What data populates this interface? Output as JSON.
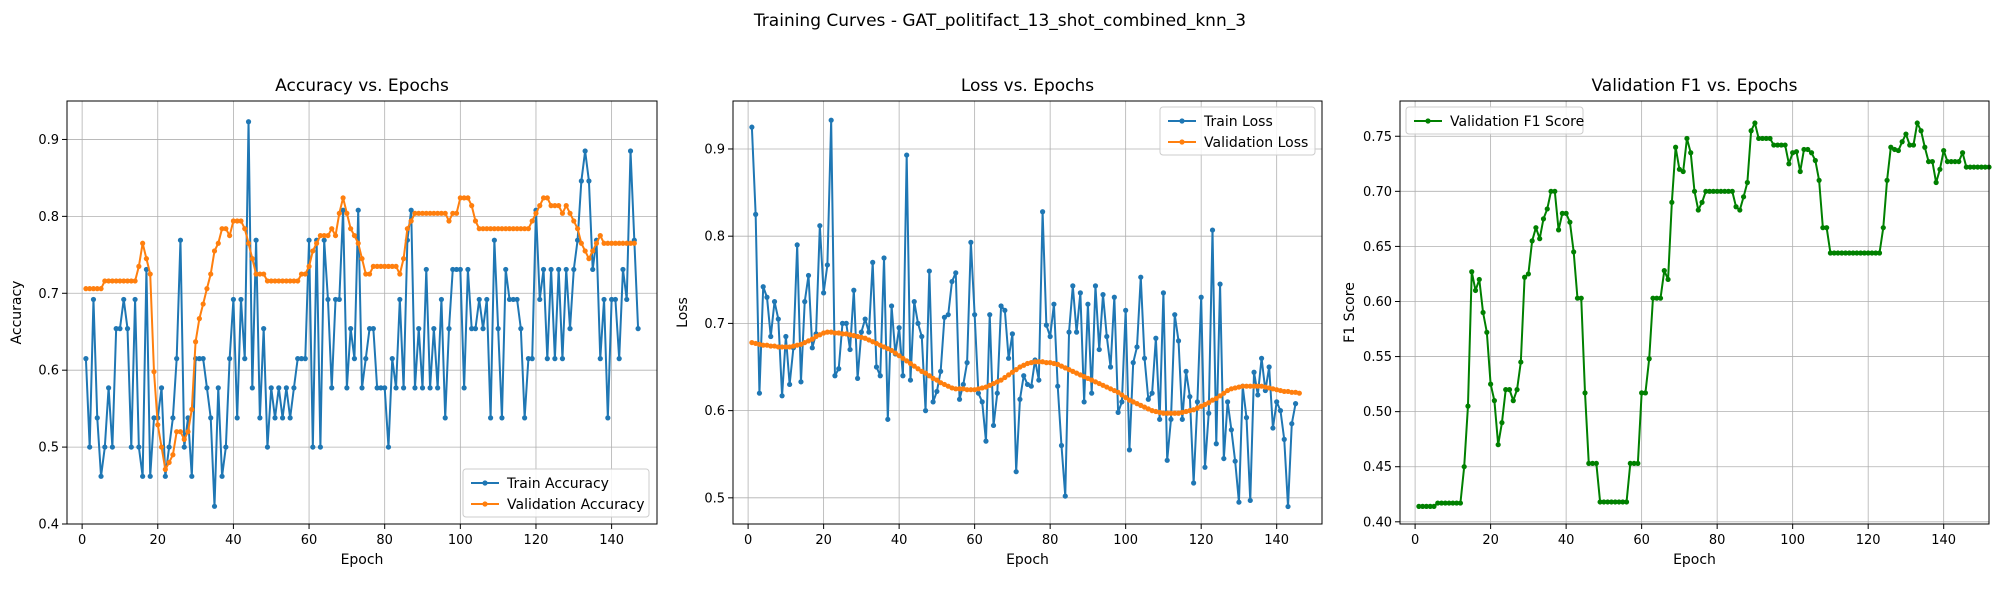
{
  "figure": {
    "suptitle": "Training Curves - GAT_politifact_13_shot_combined_knn_3"
  },
  "colors": {
    "train": "#1f77b4",
    "validation": "#ff7f0e",
    "f1": "#008000",
    "grid": "#b0b0b0"
  },
  "chart_data": [
    {
      "type": "line",
      "title": "Accuracy vs. Epochs",
      "xlabel": "Epoch",
      "ylabel": "Accuracy",
      "xlim": [
        -4,
        152
      ],
      "ylim": [
        0.4,
        0.95
      ],
      "xticks": [
        0,
        20,
        40,
        60,
        80,
        100,
        120,
        140
      ],
      "yticks": [
        0.4,
        0.5,
        0.6,
        0.7,
        0.8,
        0.9
      ],
      "grid": true,
      "legend": "lower-right",
      "markers": true,
      "series": [
        {
          "name": "Train Accuracy",
          "color": "#1f77b4",
          "x_start": 1,
          "values": [
            0.615,
            0.5,
            0.692,
            0.538,
            0.462,
            0.5,
            0.577,
            0.5,
            0.654,
            0.654,
            0.692,
            0.654,
            0.5,
            0.692,
            0.5,
            0.462,
            0.731,
            0.462,
            0.538,
            0.538,
            0.577,
            0.462,
            0.5,
            0.538,
            0.615,
            0.769,
            0.5,
            0.538,
            0.462,
            0.615,
            0.615,
            0.615,
            0.577,
            0.538,
            0.423,
            0.577,
            0.462,
            0.5,
            0.615,
            0.692,
            0.538,
            0.692,
            0.615,
            0.923,
            0.577,
            0.769,
            0.538,
            0.654,
            0.5,
            0.577,
            0.538,
            0.577,
            0.538,
            0.577,
            0.538,
            0.577,
            0.615,
            0.615,
            0.615,
            0.769,
            0.5,
            0.769,
            0.5,
            0.769,
            0.692,
            0.577,
            0.692,
            0.692,
            0.808,
            0.577,
            0.654,
            0.615,
            0.808,
            0.577,
            0.615,
            0.654,
            0.654,
            0.577,
            0.577,
            0.577,
            0.5,
            0.615,
            0.577,
            0.692,
            0.577,
            0.769,
            0.808,
            0.577,
            0.654,
            0.577,
            0.731,
            0.577,
            0.654,
            0.577,
            0.692,
            0.538,
            0.654,
            0.731,
            0.731,
            0.731,
            0.577,
            0.731,
            0.654,
            0.654,
            0.692,
            0.654,
            0.692,
            0.538,
            0.769,
            0.654,
            0.538,
            0.731,
            0.692,
            0.692,
            0.692,
            0.654,
            0.538,
            0.615,
            0.615,
            0.808,
            0.692,
            0.731,
            0.615,
            0.731,
            0.615,
            0.731,
            0.615,
            0.731,
            0.654,
            0.731,
            0.769,
            0.846,
            0.885,
            0.846,
            0.731,
            0.769,
            0.615,
            0.692,
            0.538,
            0.692,
            0.692,
            0.615,
            0.731,
            0.692,
            0.885,
            0.769,
            0.654
          ]
        },
        {
          "name": "Validation Accuracy",
          "color": "#ff7f0e",
          "x_start": 1,
          "values": [
            0.706,
            0.706,
            0.706,
            0.706,
            0.706,
            0.716,
            0.716,
            0.716,
            0.716,
            0.716,
            0.716,
            0.716,
            0.716,
            0.716,
            0.735,
            0.765,
            0.745,
            0.725,
            0.598,
            0.529,
            0.5,
            0.471,
            0.48,
            0.49,
            0.52,
            0.52,
            0.51,
            0.52,
            0.549,
            0.637,
            0.667,
            0.686,
            0.706,
            0.725,
            0.755,
            0.765,
            0.784,
            0.784,
            0.775,
            0.794,
            0.794,
            0.794,
            0.784,
            0.765,
            0.745,
            0.725,
            0.725,
            0.725,
            0.716,
            0.716,
            0.716,
            0.716,
            0.716,
            0.716,
            0.716,
            0.716,
            0.716,
            0.725,
            0.725,
            0.735,
            0.755,
            0.765,
            0.775,
            0.775,
            0.775,
            0.784,
            0.775,
            0.804,
            0.824,
            0.804,
            0.784,
            0.775,
            0.765,
            0.745,
            0.725,
            0.725,
            0.735,
            0.735,
            0.735,
            0.735,
            0.735,
            0.735,
            0.735,
            0.725,
            0.745,
            0.784,
            0.794,
            0.804,
            0.804,
            0.804,
            0.804,
            0.804,
            0.804,
            0.804,
            0.804,
            0.804,
            0.794,
            0.804,
            0.804,
            0.824,
            0.824,
            0.824,
            0.814,
            0.794,
            0.784,
            0.784,
            0.784,
            0.784,
            0.784,
            0.784,
            0.784,
            0.784,
            0.784,
            0.784,
            0.784,
            0.784,
            0.784,
            0.784,
            0.794,
            0.804,
            0.814,
            0.824,
            0.824,
            0.814,
            0.814,
            0.814,
            0.804,
            0.814,
            0.804,
            0.794,
            0.784,
            0.765,
            0.755,
            0.745,
            0.755,
            0.765,
            0.775,
            0.765,
            0.765,
            0.765,
            0.765,
            0.765,
            0.765,
            0.765,
            0.765,
            0.765
          ]
        }
      ]
    },
    {
      "type": "line",
      "title": "Loss vs. Epochs",
      "xlabel": "Epoch",
      "ylabel": "Loss",
      "xlim": [
        -4,
        152
      ],
      "ylim": [
        0.47,
        0.955
      ],
      "xticks": [
        0,
        20,
        40,
        60,
        80,
        100,
        120,
        140
      ],
      "yticks": [
        0.5,
        0.6,
        0.7,
        0.8,
        0.9
      ],
      "grid": true,
      "legend": "top-right",
      "markers": true,
      "series": [
        {
          "name": "Train Loss",
          "color": "#1f77b4",
          "x_start": 1,
          "values": [
            0.925,
            0.825,
            0.62,
            0.742,
            0.73,
            0.685,
            0.725,
            0.705,
            0.617,
            0.685,
            0.63,
            0.672,
            0.79,
            0.633,
            0.725,
            0.755,
            0.672,
            0.688,
            0.812,
            0.735,
            0.767,
            0.933,
            0.64,
            0.648,
            0.7,
            0.7,
            0.67,
            0.738,
            0.637,
            0.69,
            0.705,
            0.69,
            0.77,
            0.65,
            0.64,
            0.775,
            0.59,
            0.72,
            0.665,
            0.695,
            0.64,
            0.893,
            0.635,
            0.725,
            0.7,
            0.685,
            0.6,
            0.76,
            0.61,
            0.622,
            0.645,
            0.707,
            0.71,
            0.748,
            0.758,
            0.613,
            0.63,
            0.655,
            0.793,
            0.71,
            0.62,
            0.61,
            0.565,
            0.71,
            0.583,
            0.62,
            0.72,
            0.715,
            0.66,
            0.688,
            0.53,
            0.613,
            0.64,
            0.63,
            0.628,
            0.658,
            0.635,
            0.828,
            0.698,
            0.685,
            0.722,
            0.628,
            0.56,
            0.502,
            0.69,
            0.743,
            0.69,
            0.735,
            0.61,
            0.722,
            0.62,
            0.743,
            0.67,
            0.733,
            0.685,
            0.65,
            0.73,
            0.598,
            0.61,
            0.715,
            0.555,
            0.655,
            0.673,
            0.753,
            0.66,
            0.613,
            0.62,
            0.683,
            0.59,
            0.735,
            0.543,
            0.59,
            0.71,
            0.68,
            0.59,
            0.645,
            0.616,
            0.517,
            0.61,
            0.73,
            0.535,
            0.597,
            0.807,
            0.562,
            0.745,
            0.545,
            0.61,
            0.578,
            0.542,
            0.495,
            0.628,
            0.592,
            0.497,
            0.644,
            0.618,
            0.66,
            0.623,
            0.65,
            0.58,
            0.61,
            0.6,
            0.567,
            0.49,
            0.585,
            0.608
          ]
        },
        {
          "name": "Validation Loss",
          "color": "#ff7f0e",
          "x_start": 1,
          "values": [
            0.678,
            0.677,
            0.676,
            0.675,
            0.675,
            0.674,
            0.674,
            0.673,
            0.673,
            0.673,
            0.673,
            0.674,
            0.675,
            0.676,
            0.678,
            0.68,
            0.682,
            0.685,
            0.687,
            0.689,
            0.69,
            0.69,
            0.689,
            0.689,
            0.688,
            0.688,
            0.687,
            0.686,
            0.685,
            0.684,
            0.683,
            0.681,
            0.679,
            0.677,
            0.675,
            0.673,
            0.671,
            0.669,
            0.666,
            0.663,
            0.66,
            0.657,
            0.654,
            0.651,
            0.648,
            0.645,
            0.643,
            0.64,
            0.637,
            0.635,
            0.632,
            0.63,
            0.628,
            0.626,
            0.625,
            0.625,
            0.625,
            0.624,
            0.624,
            0.624,
            0.625,
            0.626,
            0.627,
            0.629,
            0.631,
            0.633,
            0.635,
            0.638,
            0.641,
            0.644,
            0.647,
            0.65,
            0.652,
            0.654,
            0.655,
            0.656,
            0.656,
            0.656,
            0.655,
            0.655,
            0.654,
            0.653,
            0.651,
            0.649,
            0.647,
            0.645,
            0.643,
            0.641,
            0.639,
            0.637,
            0.635,
            0.633,
            0.631,
            0.629,
            0.627,
            0.625,
            0.623,
            0.621,
            0.618,
            0.615,
            0.612,
            0.61,
            0.608,
            0.606,
            0.604,
            0.602,
            0.6,
            0.599,
            0.598,
            0.597,
            0.597,
            0.597,
            0.597,
            0.597,
            0.598,
            0.599,
            0.6,
            0.601,
            0.603,
            0.605,
            0.607,
            0.609,
            0.612,
            0.614,
            0.617,
            0.62,
            0.623,
            0.625,
            0.626,
            0.627,
            0.628,
            0.628,
            0.628,
            0.628,
            0.628,
            0.628,
            0.627,
            0.626,
            0.625,
            0.624,
            0.623,
            0.622,
            0.622,
            0.621,
            0.621,
            0.62
          ]
        }
      ]
    },
    {
      "type": "line",
      "title": "Validation F1 vs. Epochs",
      "xlabel": "Epoch",
      "ylabel": "F1 Score",
      "xlim": [
        -4,
        152
      ],
      "ylim": [
        0.398,
        0.782
      ],
      "xticks": [
        0,
        20,
        40,
        60,
        80,
        100,
        120,
        140
      ],
      "yticks": [
        0.4,
        0.45,
        0.5,
        0.55,
        0.6,
        0.65,
        0.7,
        0.75
      ],
      "grid": true,
      "legend": "top-left",
      "markers": true,
      "series": [
        {
          "name": "Validation F1 Score",
          "color": "#008000",
          "x_start": 1,
          "values": [
            0.414,
            0.414,
            0.414,
            0.414,
            0.414,
            0.417,
            0.417,
            0.417,
            0.417,
            0.417,
            0.417,
            0.417,
            0.45,
            0.505,
            0.627,
            0.61,
            0.62,
            0.59,
            0.572,
            0.525,
            0.51,
            0.47,
            0.49,
            0.52,
            0.52,
            0.51,
            0.52,
            0.545,
            0.622,
            0.625,
            0.655,
            0.667,
            0.657,
            0.675,
            0.684,
            0.7,
            0.7,
            0.665,
            0.68,
            0.68,
            0.672,
            0.645,
            0.603,
            0.603,
            0.517,
            0.453,
            0.453,
            0.453,
            0.418,
            0.418,
            0.418,
            0.418,
            0.418,
            0.418,
            0.418,
            0.418,
            0.453,
            0.453,
            0.453,
            0.517,
            0.517,
            0.548,
            0.603,
            0.603,
            0.603,
            0.628,
            0.62,
            0.69,
            0.74,
            0.72,
            0.718,
            0.748,
            0.735,
            0.7,
            0.683,
            0.69,
            0.7,
            0.7,
            0.7,
            0.7,
            0.7,
            0.7,
            0.7,
            0.7,
            0.686,
            0.683,
            0.695,
            0.708,
            0.755,
            0.762,
            0.748,
            0.748,
            0.748,
            0.748,
            0.742,
            0.742,
            0.742,
            0.742,
            0.725,
            0.735,
            0.736,
            0.718,
            0.738,
            0.738,
            0.735,
            0.728,
            0.71,
            0.667,
            0.667,
            0.644,
            0.644,
            0.644,
            0.644,
            0.644,
            0.644,
            0.644,
            0.644,
            0.644,
            0.644,
            0.644,
            0.644,
            0.644,
            0.644,
            0.667,
            0.71,
            0.74,
            0.738,
            0.737,
            0.745,
            0.752,
            0.742,
            0.742,
            0.762,
            0.755,
            0.74,
            0.727,
            0.727,
            0.708,
            0.72,
            0.737,
            0.727,
            0.727,
            0.727,
            0.727,
            0.735,
            0.722,
            0.722,
            0.722,
            0.722,
            0.722,
            0.722,
            0.722
          ]
        }
      ]
    }
  ]
}
